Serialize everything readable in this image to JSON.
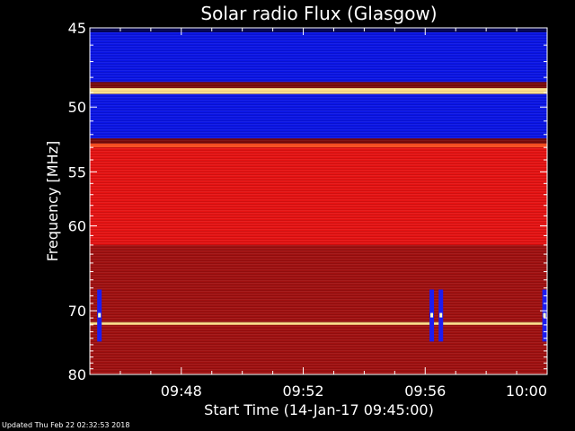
{
  "chart_data": {
    "type": "heatmap",
    "title": "Solar radio Flux (Glasgow)",
    "xlabel": "Start Time (14-Jan-17 09:45:00)",
    "ylabel": "Frequency [MHz]",
    "x_start": "09:45",
    "x_end": "10:00",
    "x_ticks": [
      "09:48",
      "09:52",
      "09:56",
      "10:00"
    ],
    "y_ticks": [
      "45",
      "50",
      "55",
      "60",
      "70",
      "80"
    ],
    "y_scale": "reciprocal",
    "ylim": [
      45,
      80
    ],
    "x_ticks_values_min": [
      3,
      7,
      11,
      15
    ],
    "y_ticks_values": [
      45,
      50,
      55,
      60,
      70,
      80
    ],
    "color_scale": [
      "#000080",
      "#0000ff",
      "#8c0000",
      "#ff0000",
      "#ffa500",
      "#ffff99"
    ],
    "bands": [
      {
        "from": 45.2,
        "to": 48.3,
        "level": "low"
      },
      {
        "from": 48.7,
        "to": 49.1,
        "level": "peak"
      },
      {
        "from": 49.1,
        "to": 52.3,
        "level": "low"
      },
      {
        "from": 52.7,
        "to": 53.0,
        "level": "hot"
      },
      {
        "from": 53.0,
        "to": 62.0,
        "level": "high"
      },
      {
        "from": 62.0,
        "to": 71.5,
        "level": "mid"
      },
      {
        "from": 71.6,
        "to": 72.0,
        "level": "peak"
      },
      {
        "from": 72.0,
        "to": 80.0,
        "level": "mid"
      }
    ],
    "bursts_time_min": [
      0.3,
      11.2,
      11.5,
      14.9
    ]
  },
  "footer": "Updated Thu Feb 22 02:32:53 2018"
}
